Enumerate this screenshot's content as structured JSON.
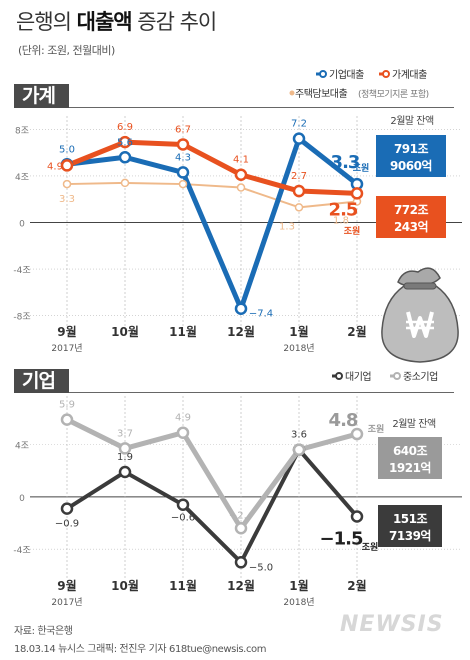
{
  "header": {
    "title_pre": "은행의 ",
    "title_bold": "대출액",
    "title_post": " 증감 추이",
    "subtitle": "(단위: 조원, 전월대비)"
  },
  "months": [
    "9월",
    "10월",
    "11월",
    "12월",
    "1월",
    "2월"
  ],
  "year_labels": [
    "2017년",
    "",
    "",
    "",
    "2018년",
    ""
  ],
  "chart_data": [
    {
      "type": "line",
      "title": "가계",
      "categories": [
        "9월",
        "10월",
        "11월",
        "12월",
        "1월",
        "2월"
      ],
      "y_ticks": [
        "8조",
        "4조",
        "0",
        "-4조",
        "-8조"
      ],
      "y_tick_values": [
        8,
        4,
        0,
        -4,
        -8
      ],
      "ylim": [
        -8.8,
        8.8
      ],
      "legend_position": "top-right",
      "series": [
        {
          "name": "기업대출",
          "color": "#1a6cb5",
          "width": 5,
          "values": [
            5.0,
            5.6,
            4.3,
            -7.4,
            7.2,
            3.3
          ],
          "labels": [
            "5.0",
            "5.6",
            "4.3",
            "−7.4",
            "7.2",
            "3.3"
          ]
        },
        {
          "name": "가계대출",
          "color": "#e8511f",
          "width": 5,
          "values": [
            4.9,
            6.9,
            6.7,
            4.1,
            2.7,
            2.5
          ],
          "labels": [
            "4.9",
            "6.9",
            "6.7",
            "4.1",
            "2.7",
            "2.5"
          ]
        },
        {
          "name": "주택담보대출",
          "note": "(정책모기지론 포함)",
          "color": "#efb98a",
          "width": 2,
          "values": [
            3.3,
            3.4,
            3.3,
            3.0,
            1.3,
            1.8
          ],
          "labels": [
            "3.3",
            "",
            "",
            "",
            "1.3",
            "1.8"
          ]
        }
      ],
      "balance_title": "2월말 잔액",
      "unit": "조원",
      "balances": [
        {
          "line1": "791조",
          "line2": "9060억",
          "color": "#1a6cb5"
        },
        {
          "line1": "772조",
          "line2": "243억",
          "color": "#e8511f"
        }
      ]
    },
    {
      "type": "line",
      "title": "기업",
      "categories": [
        "9월",
        "10월",
        "11월",
        "12월",
        "1월",
        "2월"
      ],
      "y_ticks": [
        "4조",
        "0",
        "-4조"
      ],
      "y_tick_values": [
        4,
        0,
        -4
      ],
      "ylim": [
        -6.2,
        7.4
      ],
      "legend_position": "top-right",
      "series": [
        {
          "name": "대기업",
          "color": "#3b3b3b",
          "width": 4,
          "values": [
            -0.9,
            1.9,
            -0.6,
            -5.0,
            3.6,
            -1.5
          ],
          "labels": [
            "−0.9",
            "1.9",
            "−0.6",
            "−5.0",
            "3.6",
            "−1.5"
          ]
        },
        {
          "name": "중소기업",
          "color": "#b3b3b3",
          "width": 5,
          "values": [
            5.9,
            3.7,
            4.9,
            -2.4,
            3.6,
            4.8
          ],
          "labels": [
            "5.9",
            "3.7",
            "4.9",
            "−2.4",
            "",
            "4.8"
          ]
        }
      ],
      "balance_title": "2월말 잔액",
      "unit": "조원",
      "balances": [
        {
          "line1": "640조",
          "line2": "1921억",
          "color": "#9a9a9a"
        },
        {
          "line1": "151조",
          "line2": "7139억",
          "color": "#3b3b3b"
        }
      ]
    }
  ],
  "footer": {
    "source": "자료: 한국은행",
    "credit": "18.03.14  뉴시스 그래픽: 전진우 기자 618tue@newsis.com",
    "logo": "NEWSIS"
  }
}
